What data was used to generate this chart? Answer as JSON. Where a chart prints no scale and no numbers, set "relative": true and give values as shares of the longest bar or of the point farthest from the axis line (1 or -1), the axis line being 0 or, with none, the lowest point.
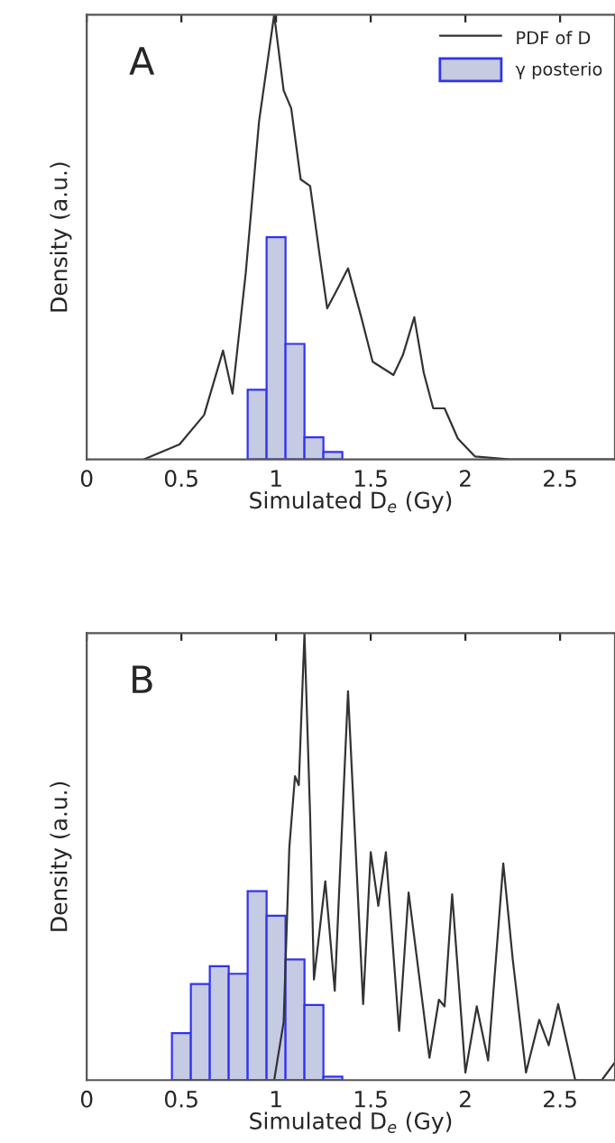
{
  "chart_data": [
    {
      "type": "line",
      "relative": true,
      "xlabel": "Simulated D$_{e}$ (Gy)",
      "ylabel": "Density (a.u.)",
      "annotations": [
        "A"
      ],
      "xlim": [
        0,
        2.79
      ],
      "xticks": [
        0,
        0.5,
        1,
        1.5,
        2,
        2.5
      ],
      "tick_labels": "x",
      "legend": "top right",
      "grid": false,
      "series": [
        {
          "name": "PDF of D",
          "color": "#333333",
          "x": [
            0.3,
            0.49,
            0.62,
            0.72,
            0.77,
            0.84,
            0.91,
            0.99,
            1.04,
            1.08,
            1.13,
            1.18,
            1.23,
            1.27,
            1.32,
            1.38,
            1.45,
            1.51,
            1.62,
            1.67,
            1.73,
            1.78,
            1.83,
            1.89,
            1.96,
            2.05,
            2.25,
            2.79
          ],
          "values": [
            0,
            0.034,
            0.1,
            0.245,
            0.148,
            0.42,
            0.76,
            1.0,
            0.83,
            0.79,
            0.63,
            0.615,
            0.46,
            0.34,
            0.38,
            0.43,
            0.32,
            0.22,
            0.19,
            0.235,
            0.32,
            0.195,
            0.115,
            0.115,
            0.047,
            0.007,
            0,
            0
          ]
        },
        {
          "name": "γ posterio",
          "type": "histogram",
          "color": "#c5cbe3",
          "bins": [
            0.85,
            0.95,
            1.05,
            1.15,
            1.25,
            1.35
          ],
          "values": [
            0.157,
            0.5,
            0.26,
            0.05,
            0.017
          ]
        }
      ]
    },
    {
      "type": "line",
      "relative": true,
      "xlabel": "Simulated D$_{e}$ (Gy)",
      "ylabel": "Density (a.u.)",
      "annotations": [
        "B"
      ],
      "xlim": [
        0,
        2.79
      ],
      "xticks": [
        0,
        0.5,
        1,
        1.5,
        2,
        2.5
      ],
      "tick_labels": "x",
      "grid": false,
      "series": [
        {
          "color": "#333333",
          "x": [
            0.99,
            1.04,
            1.07,
            1.1,
            1.12,
            1.15,
            1.18,
            1.2,
            1.26,
            1.31,
            1.38,
            1.46,
            1.5,
            1.54,
            1.58,
            1.65,
            1.7,
            1.81,
            1.86,
            1.89,
            1.93,
            2.0,
            2.06,
            2.12,
            2.2,
            2.25,
            2.32,
            2.39,
            2.44,
            2.49,
            2.58,
            2.72,
            2.79
          ],
          "values": [
            0,
            0.13,
            0.52,
            0.68,
            0.66,
            1.0,
            0.59,
            0.225,
            0.445,
            0.2,
            0.87,
            0.17,
            0.51,
            0.39,
            0.51,
            0.11,
            0.42,
            0.05,
            0.18,
            0.165,
            0.416,
            0.017,
            0.165,
            0.044,
            0.485,
            0.27,
            0.017,
            0.135,
            0.078,
            0.17,
            0,
            0,
            0.04
          ]
        },
        {
          "type": "histogram",
          "color": "#c5cbe3",
          "bins": [
            0.45,
            0.55,
            0.65,
            0.75,
            0.85,
            0.95,
            1.05,
            1.15,
            1.25,
            1.35
          ],
          "values": [
            0.105,
            0.215,
            0.255,
            0.238,
            0.423,
            0.368,
            0.27,
            0.168,
            0.008
          ]
        }
      ]
    }
  ]
}
